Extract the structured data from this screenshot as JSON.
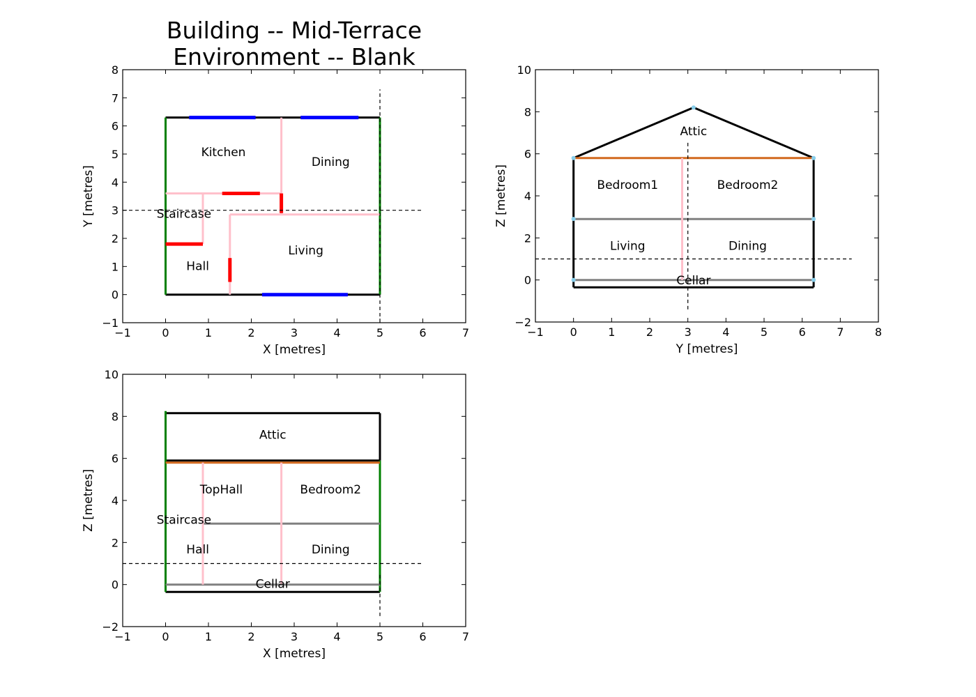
{
  "figure_title": [
    "Building -- Mid-Terrace",
    "Environment -- Blank"
  ],
  "colors": {
    "outline": "#000000",
    "party_wall": "#008000",
    "window": "#0000ff",
    "door": "#ff0000",
    "internal_wall": "#ffc0cb",
    "floor": "#808080",
    "ceiling": "#d2691e",
    "vertex": "#87ceeb",
    "section_line": "#000000"
  },
  "chart_data": [
    {
      "type": "diagram",
      "id": "plan",
      "xlabel": "X [metres]",
      "ylabel": "Y [metres]",
      "xlim": [
        -1,
        7
      ],
      "ylim": [
        -1,
        8
      ],
      "xticks": [
        -1,
        0,
        1,
        2,
        3,
        4,
        5,
        6,
        7
      ],
      "yticks": [
        -1,
        0,
        1,
        2,
        3,
        4,
        5,
        6,
        7,
        8
      ],
      "lines": [
        {
          "role": "outline",
          "points": [
            [
              0,
              6.3
            ],
            [
              5,
              6.3
            ]
          ]
        },
        {
          "role": "outline",
          "points": [
            [
              0,
              0
            ],
            [
              5,
              0
            ]
          ]
        },
        {
          "role": "party_wall",
          "points": [
            [
              0,
              0
            ],
            [
              0,
              6.3
            ]
          ]
        },
        {
          "role": "party_wall",
          "points": [
            [
              5,
              0
            ],
            [
              5,
              6.3
            ]
          ]
        },
        {
          "role": "window",
          "points": [
            [
              0.55,
              6.3
            ],
            [
              2.1,
              6.3
            ]
          ]
        },
        {
          "role": "window",
          "points": [
            [
              3.15,
              6.3
            ],
            [
              4.5,
              6.3
            ]
          ]
        },
        {
          "role": "window",
          "points": [
            [
              2.25,
              0
            ],
            [
              4.25,
              0
            ]
          ]
        },
        {
          "role": "internal_wall",
          "points": [
            [
              0,
              3.6
            ],
            [
              2.7,
              3.6
            ]
          ]
        },
        {
          "role": "internal_wall",
          "points": [
            [
              2.7,
              2.85
            ],
            [
              2.7,
              6.3
            ]
          ]
        },
        {
          "role": "internal_wall",
          "points": [
            [
              0.87,
              1.8
            ],
            [
              0.87,
              3.6
            ]
          ]
        },
        {
          "role": "internal_wall",
          "points": [
            [
              1.5,
              0
            ],
            [
              1.5,
              2.85
            ]
          ]
        },
        {
          "role": "internal_wall",
          "points": [
            [
              1.5,
              2.85
            ],
            [
              5,
              2.85
            ]
          ]
        },
        {
          "role": "door",
          "points": [
            [
              1.32,
              3.6
            ],
            [
              2.2,
              3.6
            ]
          ]
        },
        {
          "role": "door",
          "points": [
            [
              2.7,
              2.9
            ],
            [
              2.7,
              3.6
            ]
          ]
        },
        {
          "role": "door",
          "points": [
            [
              0,
              1.8
            ],
            [
              0.87,
              1.8
            ]
          ]
        },
        {
          "role": "door",
          "points": [
            [
              1.5,
              0.45
            ],
            [
              1.5,
              1.3
            ]
          ]
        },
        {
          "role": "section_line",
          "points": [
            [
              -1,
              3
            ],
            [
              6,
              3
            ]
          ]
        },
        {
          "role": "section_line",
          "points": [
            [
              5,
              -1
            ],
            [
              5,
              7.3
            ]
          ]
        }
      ],
      "labels": [
        {
          "text": "Kitchen",
          "x": 1.35,
          "y": 5.05
        },
        {
          "text": "Dining",
          "x": 3.85,
          "y": 4.7
        },
        {
          "text": "Staircase",
          "x": 0.43,
          "y": 2.85
        },
        {
          "text": "Living",
          "x": 3.27,
          "y": 1.55
        },
        {
          "text": "Hall",
          "x": 0.75,
          "y": 1.0
        }
      ]
    },
    {
      "type": "diagram",
      "id": "section-yz",
      "xlabel": "Y [metres]",
      "ylabel": "Z [metres]",
      "xlim": [
        -1,
        8
      ],
      "ylim": [
        -2,
        10
      ],
      "xticks": [
        -1,
        0,
        1,
        2,
        3,
        4,
        5,
        6,
        7,
        8
      ],
      "yticks": [
        -2,
        0,
        2,
        4,
        6,
        8,
        10
      ],
      "lines": [
        {
          "role": "outline",
          "points": [
            [
              0,
              5.8
            ],
            [
              3.15,
              8.2
            ],
            [
              6.3,
              5.8
            ]
          ]
        },
        {
          "role": "outline",
          "points": [
            [
              0,
              -0.35
            ],
            [
              0,
              5.8
            ]
          ]
        },
        {
          "role": "outline",
          "points": [
            [
              6.3,
              -0.35
            ],
            [
              6.3,
              5.8
            ]
          ]
        },
        {
          "role": "outline",
          "points": [
            [
              0,
              -0.35
            ],
            [
              6.3,
              -0.35
            ]
          ]
        },
        {
          "role": "ceiling",
          "points": [
            [
              0,
              5.8
            ],
            [
              6.3,
              5.8
            ]
          ]
        },
        {
          "role": "floor",
          "points": [
            [
              0,
              2.9
            ],
            [
              6.3,
              2.9
            ]
          ]
        },
        {
          "role": "floor",
          "points": [
            [
              0,
              0
            ],
            [
              6.3,
              0
            ]
          ]
        },
        {
          "role": "internal_wall",
          "points": [
            [
              2.85,
              0
            ],
            [
              2.85,
              5.8
            ]
          ]
        },
        {
          "role": "section_line",
          "points": [
            [
              -1,
              1
            ],
            [
              7.3,
              1
            ]
          ]
        },
        {
          "role": "section_line",
          "points": [
            [
              3,
              -1.4
            ],
            [
              3,
              6.6
            ]
          ]
        }
      ],
      "vertices": [
        [
          0,
          5.8
        ],
        [
          3.15,
          8.2
        ],
        [
          6.3,
          5.8
        ],
        [
          0,
          2.9
        ],
        [
          6.3,
          2.9
        ],
        [
          0,
          0
        ],
        [
          6.3,
          0
        ]
      ],
      "labels": [
        {
          "text": "Attic",
          "x": 3.15,
          "y": 7.05
        },
        {
          "text": "Bedroom1",
          "x": 1.42,
          "y": 4.5
        },
        {
          "text": "Bedroom2",
          "x": 4.57,
          "y": 4.5
        },
        {
          "text": "Living",
          "x": 1.42,
          "y": 1.6
        },
        {
          "text": "Dining",
          "x": 4.57,
          "y": 1.6
        },
        {
          "text": "Cellar",
          "x": 3.15,
          "y": -0.05
        }
      ]
    },
    {
      "type": "diagram",
      "id": "section-xz",
      "xlabel": "X [metres]",
      "ylabel": "Z [metres]",
      "xlim": [
        -1,
        7
      ],
      "ylim": [
        -2,
        10
      ],
      "xticks": [
        -1,
        0,
        1,
        2,
        3,
        4,
        5,
        6,
        7
      ],
      "yticks": [
        -2,
        0,
        2,
        4,
        6,
        8,
        10
      ],
      "lines": [
        {
          "role": "outline",
          "points": [
            [
              0,
              8.15
            ],
            [
              5,
              8.15
            ]
          ]
        },
        {
          "role": "outline",
          "points": [
            [
              5,
              5.9
            ],
            [
              5,
              8.15
            ]
          ]
        },
        {
          "role": "outline",
          "points": [
            [
              0,
              5.9
            ],
            [
              5,
              5.9
            ]
          ]
        },
        {
          "role": "outline",
          "points": [
            [
              0,
              -0.35
            ],
            [
              5,
              -0.35
            ]
          ]
        },
        {
          "role": "party_wall",
          "points": [
            [
              0,
              -0.35
            ],
            [
              0,
              8.25
            ]
          ]
        },
        {
          "role": "party_wall",
          "points": [
            [
              5,
              -0.35
            ],
            [
              5,
              5.9
            ]
          ]
        },
        {
          "role": "ceiling",
          "points": [
            [
              0,
              5.8
            ],
            [
              5,
              5.8
            ]
          ]
        },
        {
          "role": "floor",
          "points": [
            [
              0.87,
              2.9
            ],
            [
              5,
              2.9
            ]
          ]
        },
        {
          "role": "floor",
          "points": [
            [
              0,
              0
            ],
            [
              5,
              0
            ]
          ]
        },
        {
          "role": "internal_wall",
          "points": [
            [
              0.87,
              0
            ],
            [
              0.87,
              5.8
            ]
          ]
        },
        {
          "role": "internal_wall",
          "points": [
            [
              2.7,
              0
            ],
            [
              2.7,
              5.8
            ]
          ]
        },
        {
          "role": "section_line",
          "points": [
            [
              -1,
              1
            ],
            [
              6,
              1
            ]
          ]
        },
        {
          "role": "section_line",
          "points": [
            [
              5,
              -1.5
            ],
            [
              5,
              0.5
            ]
          ]
        }
      ],
      "labels": [
        {
          "text": "Attic",
          "x": 2.5,
          "y": 7.1
        },
        {
          "text": "TopHall",
          "x": 1.3,
          "y": 4.5
        },
        {
          "text": "Bedroom2",
          "x": 3.85,
          "y": 4.5
        },
        {
          "text": "Staircase",
          "x": 0.43,
          "y": 3.05
        },
        {
          "text": "Hall",
          "x": 0.75,
          "y": 1.65
        },
        {
          "text": "Dining",
          "x": 3.85,
          "y": 1.65
        },
        {
          "text": "Cellar",
          "x": 2.5,
          "y": 0
        }
      ]
    }
  ]
}
